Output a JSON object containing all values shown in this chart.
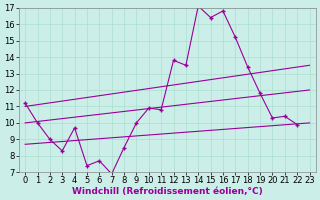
{
  "background_color": "#cceee8",
  "grid_color": "#aaddcc",
  "line_color": "#990099",
  "marker": "+",
  "xlabel": "Windchill (Refroidissement éolien,°C)",
  "xlabel_fontsize": 6.5,
  "tick_fontsize": 6,
  "xlim": [
    -0.5,
    23.5
  ],
  "ylim": [
    7,
    17
  ],
  "yticks": [
    7,
    8,
    9,
    10,
    11,
    12,
    13,
    14,
    15,
    16,
    17
  ],
  "xticks": [
    0,
    1,
    2,
    3,
    4,
    5,
    6,
    7,
    8,
    9,
    10,
    11,
    12,
    13,
    14,
    15,
    16,
    17,
    18,
    19,
    20,
    21,
    22,
    23
  ],
  "jagged": {
    "x": [
      0,
      1,
      2,
      3,
      4,
      5,
      6,
      7,
      8,
      9,
      10,
      11,
      12,
      13,
      14,
      15,
      16,
      17,
      18,
      19,
      20,
      21,
      22
    ],
    "y": [
      11.2,
      10.0,
      9.0,
      8.3,
      9.7,
      7.4,
      7.7,
      6.9,
      8.5,
      10.0,
      10.9,
      10.8,
      13.8,
      13.5,
      17.1,
      16.4,
      16.8,
      15.2,
      13.4,
      11.8,
      10.3,
      10.4,
      9.9
    ]
  },
  "line1": {
    "x": [
      0,
      23
    ],
    "y": [
      11.0,
      13.5
    ]
  },
  "line2": {
    "x": [
      0,
      23
    ],
    "y": [
      10.0,
      12.0
    ]
  },
  "line3": {
    "x": [
      0,
      23
    ],
    "y": [
      8.7,
      10.0
    ]
  }
}
